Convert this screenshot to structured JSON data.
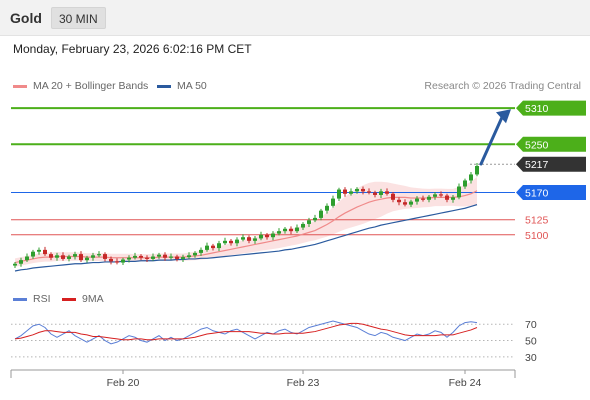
{
  "header": {
    "instrument": "Gold",
    "timeframe": "30 MIN"
  },
  "datetime": "Monday, February 23, 2026 6:02:16 PM CET",
  "legend": {
    "items": [
      {
        "label": "MA 20 + Bollinger Bands",
        "color": "#f08a8a"
      },
      {
        "label": "MA 50",
        "color": "#2a5a9e"
      }
    ],
    "credit": "Research © 2026 Trading Central"
  },
  "rsi_legend": {
    "items": [
      {
        "label": "RSI",
        "color": "#5b7fd6"
      },
      {
        "label": "9MA",
        "color": "#d62020"
      }
    ]
  },
  "chart_data": {
    "type": "line",
    "price_axis": {
      "range": [
        5040,
        5330
      ]
    },
    "levels": [
      {
        "label": "5310",
        "value": 5310,
        "kind": "resistance",
        "color": "#4caf1a"
      },
      {
        "label": "5250",
        "value": 5250,
        "kind": "resistance",
        "color": "#4caf1a"
      },
      {
        "label": "5217",
        "value": 5217,
        "kind": "last-price",
        "color": "#333333"
      },
      {
        "label": "5170",
        "value": 5170,
        "kind": "pivot",
        "color": "#1e66e8"
      },
      {
        "label": "5125",
        "value": 5125,
        "kind": "support",
        "color": "#e05555"
      },
      {
        "label": "5100",
        "value": 5100,
        "kind": "support",
        "color": "#e05555"
      }
    ],
    "price": [
      5052,
      5058,
      5064,
      5072,
      5075,
      5068,
      5062,
      5066,
      5060,
      5064,
      5068,
      5058,
      5062,
      5066,
      5068,
      5060,
      5056,
      5054,
      5059,
      5062,
      5065,
      5062,
      5060,
      5064,
      5067,
      5062,
      5064,
      5060,
      5063,
      5066,
      5070,
      5075,
      5082,
      5078,
      5086,
      5090,
      5086,
      5092,
      5096,
      5090,
      5094,
      5100,
      5096,
      5102,
      5106,
      5110,
      5106,
      5112,
      5118,
      5124,
      5128,
      5140,
      5148,
      5160,
      5175,
      5168,
      5172,
      5176,
      5172,
      5170,
      5166,
      5172,
      5168,
      5158,
      5154,
      5150,
      5155,
      5160,
      5158,
      5163,
      5167,
      5165,
      5158,
      5162,
      5180,
      5190,
      5200,
      5214
    ],
    "ma20": [
      5054,
      5056,
      5058,
      5060,
      5062,
      5063,
      5063,
      5064,
      5064,
      5064,
      5064,
      5064,
      5063,
      5063,
      5063,
      5063,
      5062,
      5062,
      5062,
      5062,
      5062,
      5062,
      5062,
      5062,
      5063,
      5063,
      5063,
      5063,
      5063,
      5064,
      5065,
      5066,
      5068,
      5070,
      5072,
      5074,
      5076,
      5078,
      5080,
      5082,
      5084,
      5086,
      5088,
      5090,
      5092,
      5094,
      5096,
      5098,
      5101,
      5104,
      5107,
      5112,
      5117,
      5123,
      5130,
      5136,
      5141,
      5146,
      5150,
      5154,
      5157,
      5159,
      5161,
      5162,
      5162,
      5162,
      5161,
      5161,
      5161,
      5161,
      5162,
      5162,
      5162,
      5162,
      5163,
      5165,
      5168,
      5173
    ],
    "ma50": [
      5040,
      5042,
      5043,
      5045,
      5046,
      5047,
      5048,
      5049,
      5050,
      5051,
      5052,
      5052,
      5053,
      5054,
      5054,
      5055,
      5055,
      5055,
      5056,
      5056,
      5056,
      5057,
      5057,
      5057,
      5058,
      5058,
      5058,
      5059,
      5059,
      5060,
      5060,
      5061,
      5061,
      5062,
      5063,
      5064,
      5065,
      5066,
      5067,
      5068,
      5069,
      5070,
      5071,
      5072,
      5073,
      5075,
      5076,
      5078,
      5080,
      5082,
      5084,
      5087,
      5090,
      5093,
      5096,
      5099,
      5102,
      5105,
      5108,
      5111,
      5113,
      5116,
      5118,
      5120,
      5122,
      5124,
      5126,
      5128,
      5130,
      5132,
      5134,
      5136,
      5138,
      5140,
      5142,
      5144,
      5147,
      5150
    ],
    "bb_width": [
      14,
      14,
      14,
      14,
      15,
      15,
      15,
      15,
      14,
      14,
      14,
      13,
      13,
      13,
      13,
      13,
      13,
      13,
      13,
      13,
      12,
      12,
      12,
      12,
      12,
      12,
      12,
      12,
      12,
      13,
      14,
      15,
      16,
      17,
      18,
      19,
      20,
      21,
      22,
      23,
      24,
      25,
      26,
      27,
      28,
      28,
      28,
      28,
      29,
      30,
      32,
      36,
      40,
      45,
      50,
      54,
      58,
      62,
      64,
      64,
      62,
      58,
      52,
      46,
      42,
      38,
      35,
      33,
      31,
      30,
      29,
      29,
      28,
      28,
      32,
      36,
      40,
      46
    ],
    "rsi_axis": {
      "range": [
        20,
        85
      ],
      "ticks": [
        30,
        50,
        70
      ]
    },
    "rsi": [
      52,
      56,
      62,
      68,
      70,
      66,
      58,
      54,
      58,
      62,
      56,
      52,
      48,
      52,
      56,
      50,
      46,
      48,
      52,
      56,
      54,
      50,
      48,
      52,
      56,
      50,
      54,
      50,
      52,
      56,
      60,
      64,
      66,
      62,
      60,
      58,
      62,
      64,
      60,
      56,
      52,
      56,
      60,
      58,
      62,
      64,
      60,
      58,
      62,
      66,
      68,
      70,
      72,
      74,
      72,
      70,
      68,
      66,
      62,
      58,
      56,
      60,
      58,
      54,
      52,
      50,
      54,
      58,
      56,
      58,
      62,
      60,
      54,
      60,
      68,
      72,
      73,
      72
    ],
    "rsi_ma9": [
      52,
      53,
      55,
      57,
      60,
      62,
      62,
      61,
      60,
      60,
      60,
      58,
      57,
      55,
      55,
      54,
      53,
      52,
      51,
      51,
      52,
      52,
      51,
      51,
      52,
      52,
      52,
      52,
      52,
      53,
      54,
      56,
      58,
      59,
      60,
      61,
      61,
      61,
      61,
      61,
      60,
      59,
      59,
      58,
      58,
      59,
      59,
      59,
      59,
      60,
      61,
      63,
      65,
      67,
      69,
      70,
      71,
      71,
      70,
      68,
      66,
      64,
      63,
      61,
      59,
      57,
      56,
      56,
      56,
      56,
      56,
      57,
      57,
      57,
      59,
      61,
      63,
      66
    ]
  },
  "x_axis": {
    "labels": [
      {
        "text": "Feb 20",
        "index": 18
      },
      {
        "text": "Feb 23",
        "index": 48
      },
      {
        "text": "Feb 24",
        "index": 75
      }
    ]
  }
}
